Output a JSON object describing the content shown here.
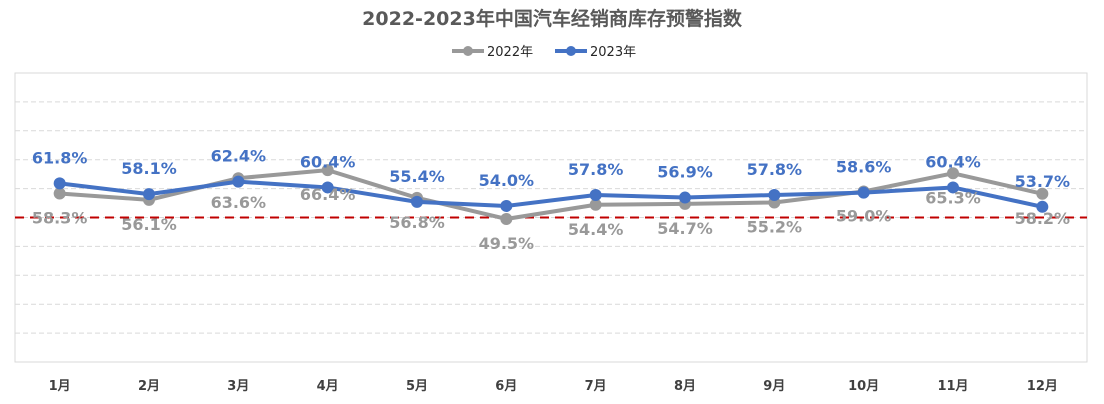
{
  "chart_data": {
    "type": "line",
    "title": "2022-2023年中国汽车经销商库存预警指数",
    "categories": [
      "1月",
      "2月",
      "3月",
      "4月",
      "5月",
      "6月",
      "7月",
      "8月",
      "9月",
      "10月",
      "11月",
      "12月"
    ],
    "series": [
      {
        "name": "2022年",
        "color": "#999999",
        "values": [
          58.3,
          56.1,
          63.6,
          66.4,
          56.8,
          49.5,
          54.4,
          54.7,
          55.2,
          59.0,
          65.3,
          58.2
        ],
        "labels": [
          "58.3%",
          "56.1%",
          "63.6%",
          "66.4%",
          "56.8%",
          "49.5%",
          "54.4%",
          "54.7%",
          "55.2%",
          "59.0%",
          "65.3%",
          "58.2%"
        ]
      },
      {
        "name": "2023年",
        "color": "#4472C4",
        "values": [
          61.8,
          58.1,
          62.4,
          60.4,
          55.4,
          54.0,
          57.8,
          56.9,
          57.8,
          58.6,
          60.4,
          53.7
        ],
        "labels": [
          "61.8%",
          "58.1%",
          "62.4%",
          "60.4%",
          "55.4%",
          "54.0%",
          "57.8%",
          "56.9%",
          "57.8%",
          "58.6%",
          "60.4%",
          "53.7%"
        ]
      }
    ],
    "reference_line": {
      "value": 50,
      "color": "#C00000",
      "style": "dashed"
    },
    "ylim": [
      0,
      100
    ],
    "grid": true,
    "legend": "top-center"
  }
}
